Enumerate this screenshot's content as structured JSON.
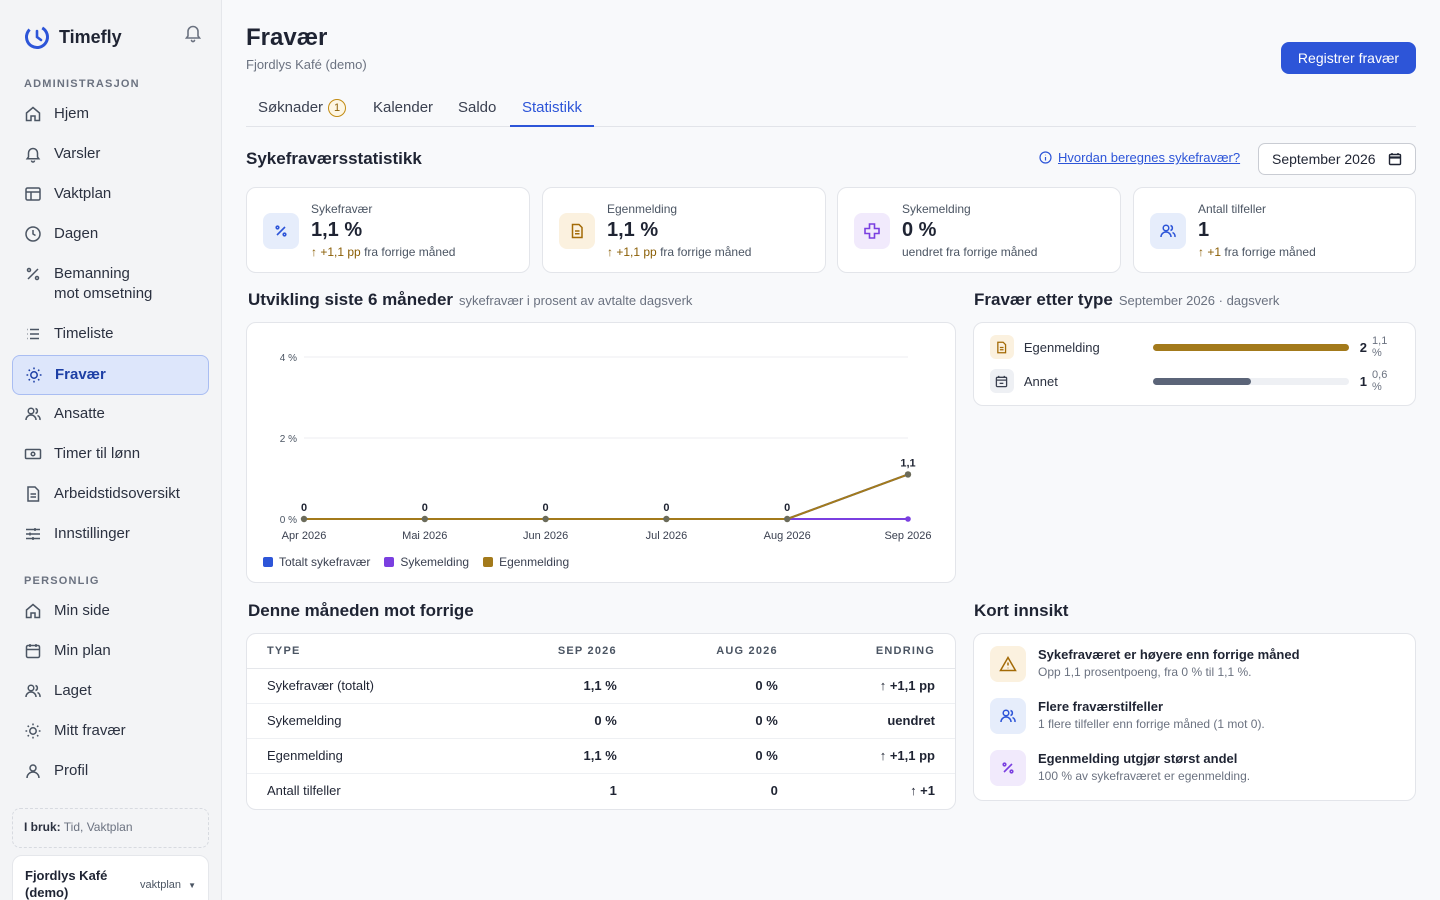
{
  "app": {
    "name": "Timefly"
  },
  "sidebar": {
    "section_admin": "ADMINISTRASJON",
    "admin_items": [
      {
        "label": "Hjem",
        "icon": "home-icon"
      },
      {
        "label": "Varsler",
        "icon": "bell-icon"
      },
      {
        "label": "Vaktplan",
        "icon": "table-icon"
      },
      {
        "label": "Dagen",
        "icon": "clock-icon"
      },
      {
        "label": "Bemanning mot omsetning",
        "line1": "Bemanning",
        "line2": "mot omsetning",
        "icon": "percent-icon"
      },
      {
        "label": "Timeliste",
        "icon": "list-icon"
      },
      {
        "label": "Fravær",
        "icon": "sun-icon",
        "active": true
      },
      {
        "label": "Ansatte",
        "icon": "users-icon"
      },
      {
        "label": "Timer til lønn",
        "icon": "money-icon"
      },
      {
        "label": "Arbeidstidsoversikt",
        "icon": "document-icon"
      },
      {
        "label": "Innstillinger",
        "icon": "sliders-icon"
      }
    ],
    "section_personal": "PERSONLIG",
    "personal_items": [
      {
        "label": "Min side",
        "icon": "home-icon"
      },
      {
        "label": "Min plan",
        "icon": "calendar-icon"
      },
      {
        "label": "Laget",
        "icon": "users-icon"
      },
      {
        "label": "Mitt fravær",
        "icon": "sun-icon"
      },
      {
        "label": "Profil",
        "icon": "user-icon"
      }
    ],
    "in_use_label": "I bruk:",
    "in_use_value": "Tid, Vaktplan",
    "org_name": "Fjordlys Kafé (demo)",
    "org_plan": "vaktplan"
  },
  "header": {
    "title": "Fravær",
    "subtitle": "Fjordlys Kafé (demo)",
    "primary_action": "Registrer fravær"
  },
  "tabs": [
    {
      "label": "Søknader",
      "badge": "1"
    },
    {
      "label": "Kalender"
    },
    {
      "label": "Saldo"
    },
    {
      "label": "Statistikk",
      "active": true
    }
  ],
  "stats": {
    "title": "Sykefraværsstatistikk",
    "help_link": "Hvordan beregnes sykefravær?",
    "month": "September 2026"
  },
  "kpis": [
    {
      "label": "Sykefravær",
      "value": "1,1 %",
      "delta_arrow": "↑ +1,1 pp",
      "delta_text": "fra forrige måned",
      "icon": "percent-icon",
      "bg": "#e6edfb",
      "fg": "#2d55d8"
    },
    {
      "label": "Egenmelding",
      "value": "1,1 %",
      "delta_arrow": "↑ +1,1 pp",
      "delta_text": "fra forrige måned",
      "icon": "document-icon",
      "bg": "#fbf1df",
      "fg": "#a36a06"
    },
    {
      "label": "Sykemelding",
      "value": "0 %",
      "delta_arrow": "",
      "delta_text": "uendret fra forrige måned",
      "icon": "plus-icon",
      "bg": "#f1eafc",
      "fg": "#7a3fe0"
    },
    {
      "label": "Antall tilfeller",
      "value": "1",
      "delta_arrow": "↑ +1",
      "delta_text": "fra forrige måned",
      "icon": "users-icon",
      "bg": "#e6edfb",
      "fg": "#2d55d8"
    }
  ],
  "trend": {
    "title": "Utvikling siste 6 måneder",
    "subtitle": "sykefravær i prosent av avtalte dagsverk"
  },
  "chart_data": {
    "type": "line",
    "x": [
      "Apr 2026",
      "Mai 2026",
      "Jun 2026",
      "Jul 2026",
      "Aug 2026",
      "Sep 2026"
    ],
    "yticks": [
      "0 %",
      "2 %",
      "4 %"
    ],
    "ylim": [
      0,
      4
    ],
    "series": [
      {
        "name": "Totalt sykefravær",
        "values": [
          0,
          0,
          0,
          0,
          0,
          1.1
        ],
        "color": "#2d55d8"
      },
      {
        "name": "Sykemelding",
        "values": [
          0,
          0,
          0,
          0,
          0,
          0
        ],
        "color": "#7a3fe0"
      },
      {
        "name": "Egenmelding",
        "values": [
          0,
          0,
          0,
          0,
          0,
          1.1
        ],
        "color": "#a37a1b"
      }
    ],
    "data_labels": [
      "0",
      "0",
      "0",
      "0",
      "0",
      "1,1"
    ],
    "legend": "bottom-left",
    "grid": true
  },
  "by_type": {
    "title": "Fravær etter type",
    "subtitle": "September 2026 · dagsverk",
    "rows": [
      {
        "name": "Egenmelding",
        "count": "2",
        "pct": "1,1 %",
        "share": 1.0,
        "color": "#a37a1b",
        "icon": "document-icon"
      },
      {
        "name": "Annet",
        "count": "1",
        "pct": "0,6 %",
        "share": 0.5,
        "color": "#5b6478",
        "icon": "calendar-icon"
      }
    ]
  },
  "comparison": {
    "title": "Denne måneden mot forrige",
    "headers": [
      "TYPE",
      "SEP 2026",
      "AUG 2026",
      "ENDRING"
    ],
    "rows": [
      [
        "Sykefravær (totalt)",
        "1,1 %",
        "0 %",
        "↑ +1,1 pp"
      ],
      [
        "Sykemelding",
        "0 %",
        "0 %",
        "uendret"
      ],
      [
        "Egenmelding",
        "1,1 %",
        "0 %",
        "↑ +1,1 pp"
      ],
      [
        "Antall tilfeller",
        "1",
        "0",
        "↑ +1"
      ]
    ]
  },
  "insights": {
    "title": "Kort innsikt",
    "items": [
      {
        "title": "Sykefraværet er høyere enn forrige måned",
        "text": "Opp 1,1 prosentpoeng, fra 0 % til 1,1 %.",
        "icon": "warning-icon",
        "bg": "#fbf1df",
        "fg": "#a36a06"
      },
      {
        "title": "Flere fraværstilfeller",
        "text": "1 flere tilfeller enn forrige måned (1 mot 0).",
        "icon": "users-icon",
        "bg": "#e6edfb",
        "fg": "#2d55d8"
      },
      {
        "title": "Egenmelding utgjør størst andel",
        "text": "100 % av sykefraværet er egenmelding.",
        "icon": "percent-icon",
        "bg": "#f1eafc",
        "fg": "#7a3fe0"
      }
    ]
  }
}
